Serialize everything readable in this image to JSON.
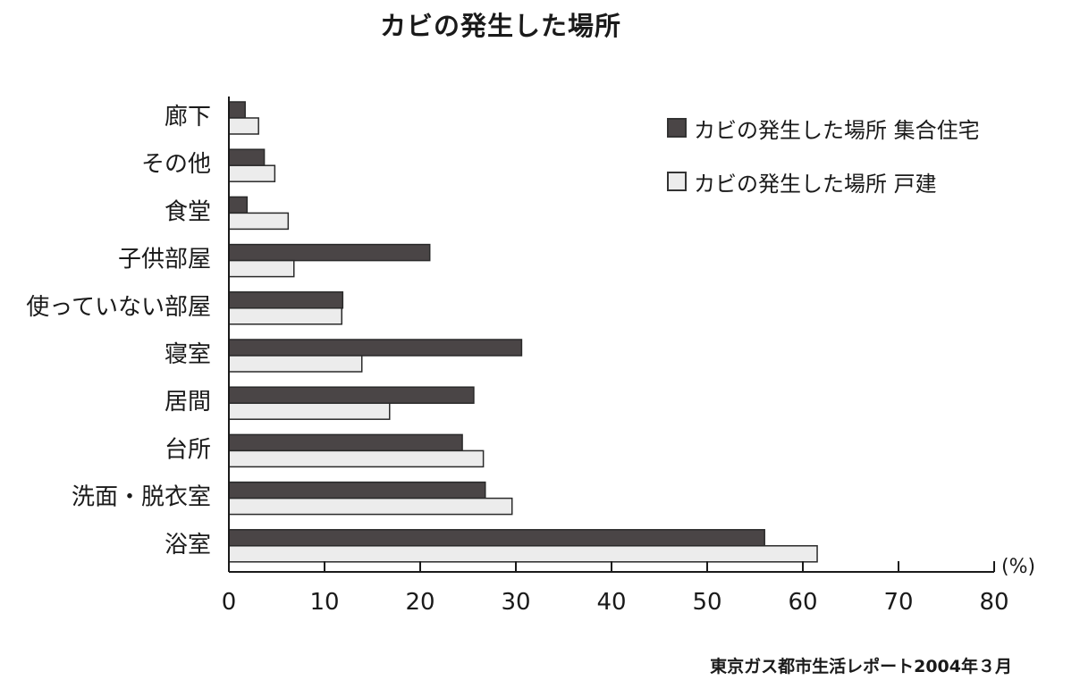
{
  "chart_data": {
    "type": "bar",
    "orientation": "horizontal",
    "title": "カビの発生した場所",
    "categories": [
      "廊下",
      "その他",
      "食堂",
      "子供部屋",
      "使っていない部屋",
      "寝室",
      "居間",
      "台所",
      "洗面・脱衣室",
      "浴室"
    ],
    "series": [
      {
        "name": "カビの発生した場所 集合住宅",
        "color": "#4a4546",
        "values": [
          1.7,
          3.7,
          1.9,
          21.0,
          11.9,
          30.6,
          25.6,
          24.4,
          26.8,
          56.0
        ]
      },
      {
        "name": "カビの発生した場所 戸建",
        "color": "#ececec",
        "values": [
          3.1,
          4.8,
          6.2,
          6.8,
          11.8,
          13.9,
          16.8,
          26.6,
          29.6,
          61.5
        ]
      }
    ],
    "xlim": [
      0,
      80
    ],
    "xticks": [
      0,
      10,
      20,
      30,
      40,
      50,
      60,
      70,
      80
    ],
    "xunit": "(%)",
    "legend_position": "top-right",
    "grid": false,
    "source": "東京ガス都市生活レポート2004年３月"
  }
}
